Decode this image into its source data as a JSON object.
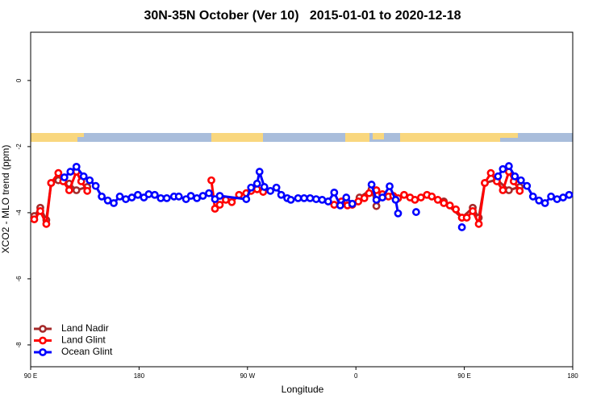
{
  "chart_data": {
    "type": "line",
    "title": "30N-35N October (Ver 10)   2015-01-01 to 2020-12-18",
    "x_label": "Longitude",
    "y_label": "XCO2 - MLO trend (ppm)",
    "xlim": [
      90,
      540
    ],
    "ylim": [
      -8.66,
      1.46
    ],
    "xticks": [
      {
        "value": 90,
        "label": "90 E"
      },
      {
        "value": 180,
        "label": "180"
      },
      {
        "value": 270,
        "label": "90 W"
      },
      {
        "value": 360,
        "label": "0"
      },
      {
        "value": 450,
        "label": "90 E"
      },
      {
        "value": 540,
        "label": "180"
      }
    ],
    "yticks": [
      0,
      -2,
      -4,
      -6,
      -8
    ],
    "legend": "bottom-left",
    "series": [
      {
        "name": "Land Nadir",
        "color": "#a52a2a",
        "x": [
          93,
          98,
          103,
          107,
          113,
          122,
          128,
          137,
          null,
          363,
          373,
          377,
          382,
          null,
          433,
          448,
          457,
          462,
          467,
          477,
          487,
          496
        ],
        "values": [
          -4.1,
          -3.85,
          -4.22,
          -3.1,
          -3.02,
          -3.12,
          -3.32,
          -3.22,
          null,
          -3.54,
          -3.29,
          -3.8,
          -3.46,
          null,
          -3.66,
          -4.15,
          -3.85,
          -4.15,
          -3.1,
          -3.0,
          -3.32,
          -3.22
        ]
      },
      {
        "name": "Land Glint",
        "color": "#ff0000",
        "x": [
          93,
          98,
          103,
          107,
          113,
          117,
          122,
          128,
          132,
          137,
          null,
          240,
          243,
          247,
          252,
          257,
          263,
          269,
          273,
          278,
          283,
          null,
          342,
          348,
          353,
          357,
          362,
          367,
          371,
          377,
          382,
          387,
          391,
          395,
          400,
          405,
          409,
          414,
          419,
          423,
          428,
          433,
          438,
          443,
          448,
          452,
          457,
          462,
          467,
          472,
          477,
          482,
          487,
          491,
          496
        ],
        "values": [
          -4.2,
          -3.95,
          -4.34,
          -3.1,
          -2.8,
          -3.05,
          -3.32,
          -2.76,
          -3.05,
          -3.34,
          null,
          -3.02,
          -3.88,
          -3.76,
          -3.61,
          -3.68,
          -3.46,
          -3.41,
          -3.34,
          -3.29,
          -3.37,
          null,
          -3.76,
          -3.66,
          -3.78,
          -3.76,
          -3.66,
          -3.56,
          -3.41,
          -3.32,
          -3.44,
          -3.51,
          -3.49,
          -3.56,
          -3.46,
          -3.54,
          -3.61,
          -3.54,
          -3.46,
          -3.51,
          -3.61,
          -3.71,
          -3.78,
          -3.9,
          -4.15,
          -4.15,
          -3.95,
          -4.34,
          -3.1,
          -2.8,
          -3.05,
          -3.32,
          -2.76,
          -3.05,
          -3.34
        ]
      },
      {
        "name": "Ocean Glint",
        "color": "#0000ff",
        "x": [
          118,
          123,
          128,
          134,
          139,
          144,
          149,
          154,
          159,
          164,
          169,
          174,
          179,
          184,
          188,
          193,
          198,
          203,
          209,
          213,
          219,
          223,
          228,
          233,
          238,
          243,
          247,
          269,
          273,
          278,
          280,
          284,
          289,
          294,
          298,
          303,
          306,
          312,
          317,
          322,
          327,
          332,
          337,
          342,
          347,
          352,
          357,
          null,
          373,
          377,
          382,
          388,
          393,
          395,
          null,
          410,
          null,
          448,
          null,
          478,
          482,
          487,
          492,
          497,
          502,
          507,
          512,
          517,
          522,
          527,
          532,
          537
        ],
        "values": [
          -2.93,
          -2.76,
          -2.61,
          -2.9,
          -3.02,
          -3.19,
          -3.51,
          -3.63,
          -3.71,
          -3.51,
          -3.59,
          -3.54,
          -3.46,
          -3.54,
          -3.44,
          -3.46,
          -3.56,
          -3.56,
          -3.51,
          -3.51,
          -3.59,
          -3.49,
          -3.56,
          -3.49,
          -3.41,
          -3.59,
          -3.49,
          -3.59,
          -3.24,
          -3.12,
          -2.76,
          -3.22,
          -3.34,
          -3.24,
          -3.46,
          -3.56,
          -3.61,
          -3.56,
          -3.56,
          -3.56,
          -3.59,
          -3.61,
          -3.66,
          -3.39,
          -3.78,
          -3.54,
          -3.73,
          null,
          -3.15,
          -3.61,
          -3.54,
          -3.2,
          -3.61,
          -4.02,
          null,
          -3.98,
          null,
          -4.44,
          null,
          -2.9,
          -2.68,
          -2.59,
          -2.9,
          -3.02,
          -3.19,
          -3.51,
          -3.63,
          -3.71,
          -3.51,
          -3.59,
          -3.54,
          -3.46
        ]
      }
    ]
  }
}
